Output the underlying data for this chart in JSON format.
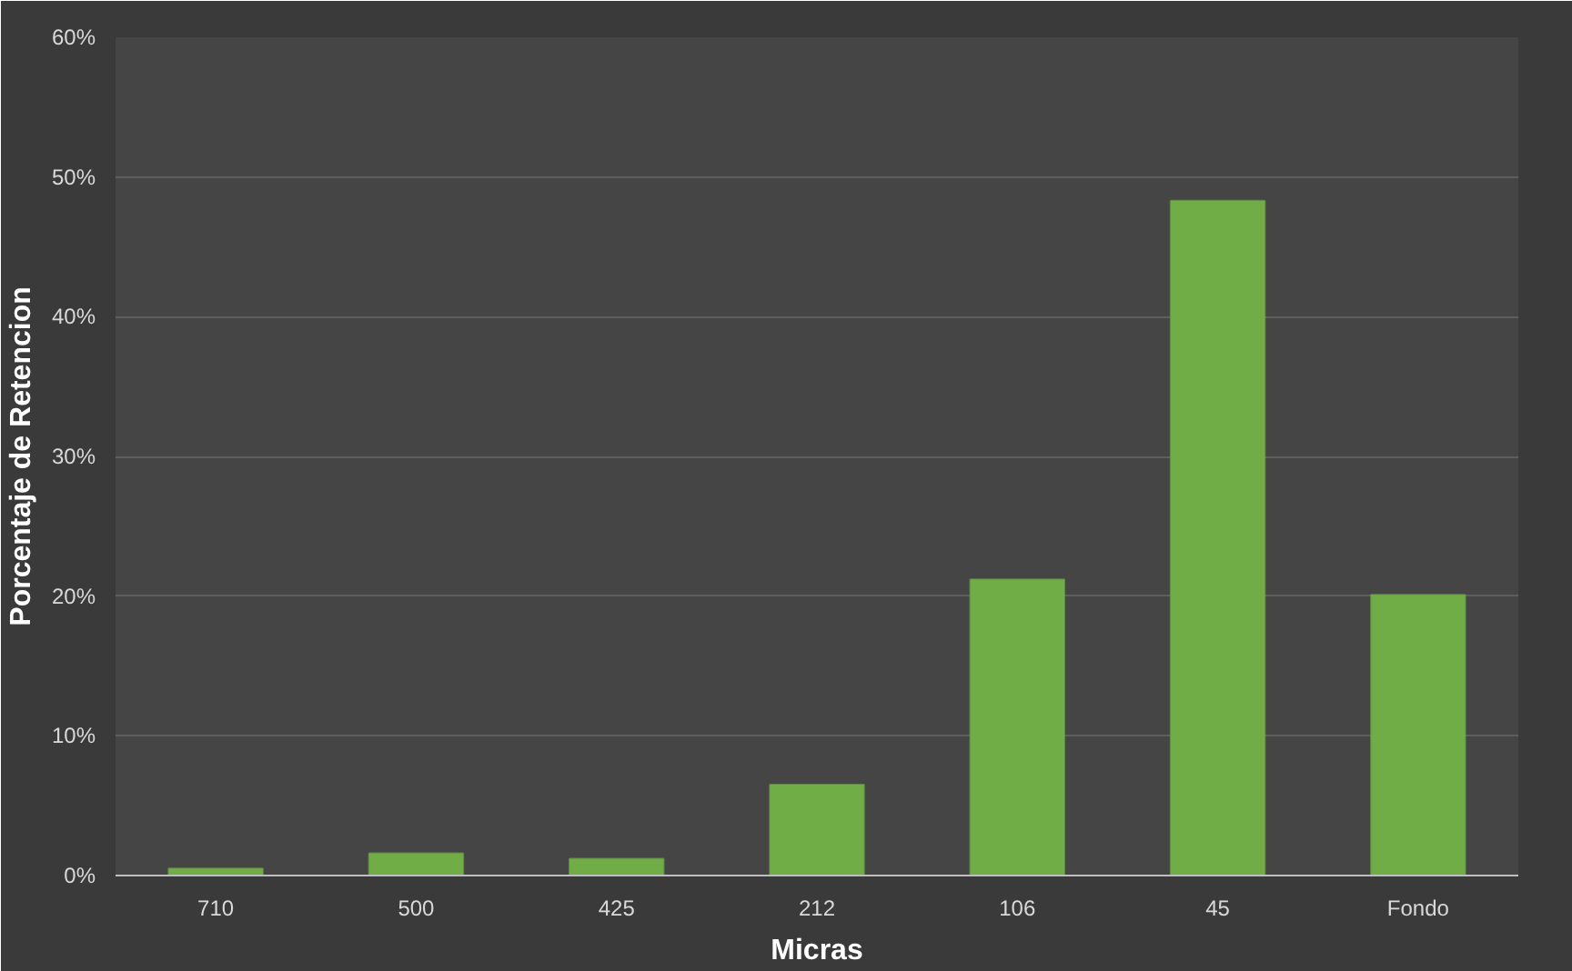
{
  "chart_data": {
    "type": "bar",
    "xlabel": "Micras",
    "ylabel": "Porcentaje de Retencion",
    "categories": [
      "710",
      "500",
      "425",
      "212",
      "106",
      "45",
      "Fondo"
    ],
    "values": [
      0.5,
      1.6,
      1.2,
      6.5,
      21.2,
      48.3,
      20.1
    ],
    "color": "#70ad47",
    "ylim": [
      0,
      60
    ],
    "yticks": [
      {
        "value": 0,
        "label": "0%"
      },
      {
        "value": 10,
        "label": "10%"
      },
      {
        "value": 20,
        "label": "20%"
      },
      {
        "value": 30,
        "label": "30%"
      },
      {
        "value": 40,
        "label": "40%"
      },
      {
        "value": 50,
        "label": "50%"
      },
      {
        "value": 60,
        "label": "60%"
      }
    ],
    "grid": "y"
  }
}
